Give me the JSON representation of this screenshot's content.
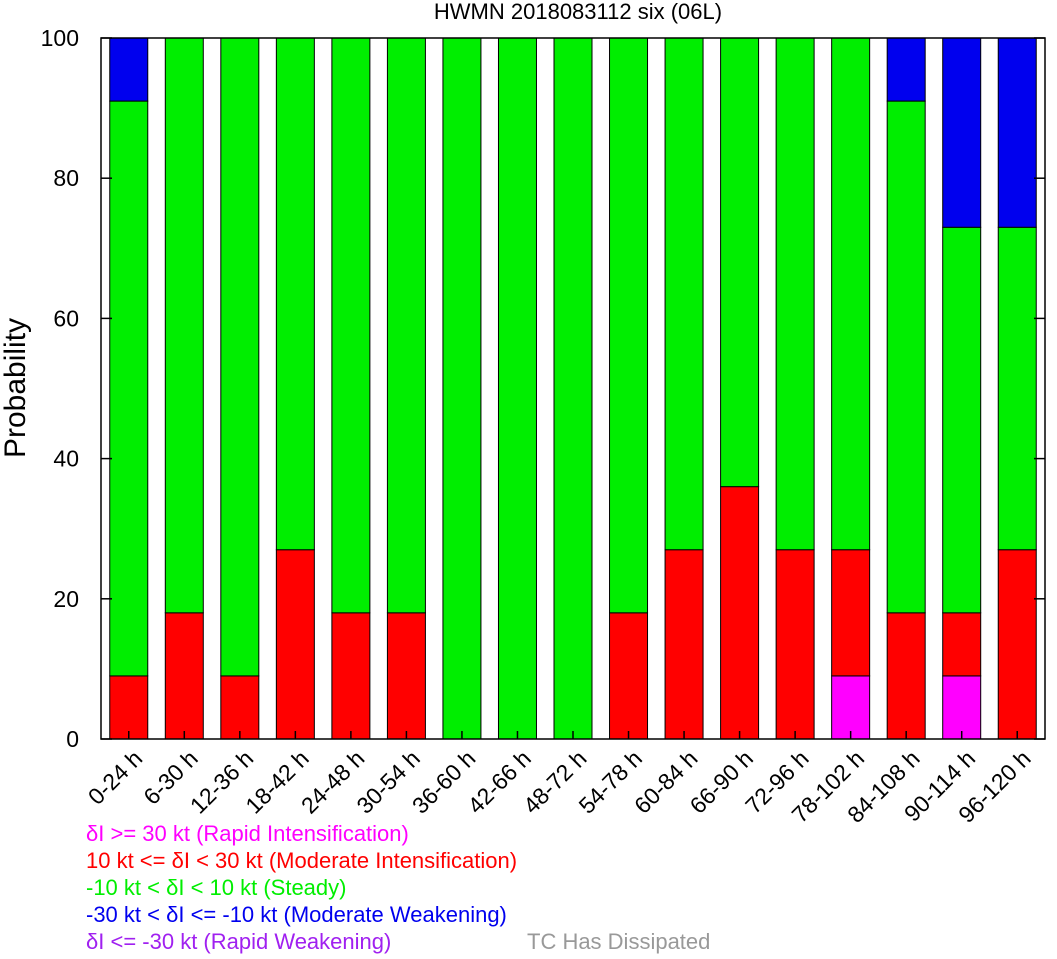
{
  "chart_data": {
    "type": "bar",
    "stacked": true,
    "title": "HWMN 2018083112 six (06L)",
    "ylabel": "Probability",
    "xlabel": "",
    "ylim": [
      0,
      100
    ],
    "yticks": [
      0,
      20,
      40,
      60,
      80,
      100
    ],
    "categories": [
      "0-24 h",
      "6-30 h",
      "12-36 h",
      "18-42 h",
      "24-48 h",
      "30-54 h",
      "36-60 h",
      "42-66 h",
      "48-72 h",
      "54-78 h",
      "60-84 h",
      "66-90 h",
      "72-96 h",
      "78-102 h",
      "84-108 h",
      "90-114 h",
      "96-120 h"
    ],
    "series": [
      {
        "name": "δI >= 30 kt (Rapid Intensification)",
        "color": "#ff00ff",
        "values": [
          0,
          0,
          0,
          0,
          0,
          0,
          0,
          0,
          0,
          0,
          0,
          0,
          0,
          9,
          0,
          9,
          0
        ]
      },
      {
        "name": "10 kt <= δI < 30 kt (Moderate Intensification)",
        "color": "#ff0000",
        "values": [
          9,
          18,
          9,
          27,
          18,
          18,
          0,
          0,
          0,
          18,
          27,
          36,
          27,
          18,
          18,
          9,
          27
        ]
      },
      {
        "name": "-10 kt < δI < 10 kt (Steady)",
        "color": "#00ee00",
        "values": [
          82,
          82,
          91,
          73,
          82,
          82,
          100,
          100,
          100,
          82,
          73,
          64,
          73,
          73,
          73,
          55,
          46
        ]
      },
      {
        "name": "-30 kt < δI <= -10 kt (Moderate Weakening)",
        "color": "#0000ee",
        "values": [
          9,
          0,
          0,
          0,
          0,
          0,
          0,
          0,
          0,
          0,
          0,
          0,
          0,
          0,
          9,
          27,
          27
        ]
      },
      {
        "name": "δI <= -30 kt (Rapid Weakening)",
        "color": "#a020f0",
        "values": [
          0,
          0,
          0,
          0,
          0,
          0,
          0,
          0,
          0,
          0,
          0,
          0,
          0,
          0,
          0,
          0,
          0
        ]
      }
    ],
    "extra_legend": {
      "label": "TC Has Dissipated",
      "color": "#999999"
    },
    "grid": false
  }
}
